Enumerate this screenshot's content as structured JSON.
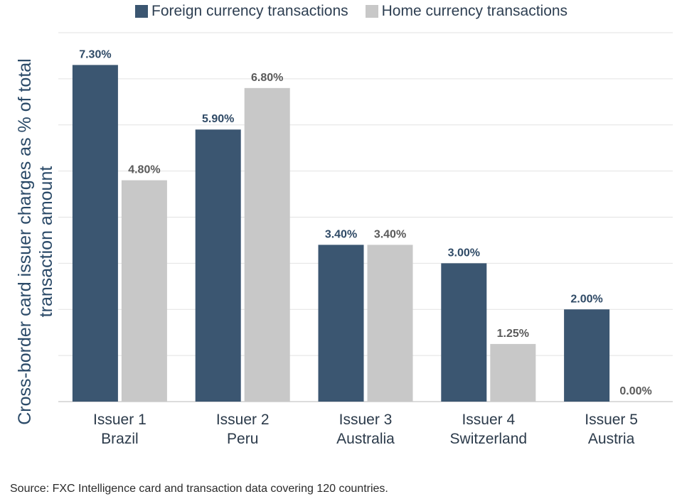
{
  "colors": {
    "foreign": "#3b5671",
    "home": "#c8c8c8",
    "grid": "#e2e2e2",
    "axis_text": "#2b3a4a",
    "foreign_label": "#2f4a66",
    "home_label": "#5a5a5a"
  },
  "legend": {
    "foreign": "Foreign currency transactions",
    "home": "Home currency transactions"
  },
  "source": "Source: FXC Intelligence card and transaction data covering 120 countries.",
  "chart_data": {
    "type": "bar",
    "categories": [
      [
        "Issuer 1",
        "Brazil"
      ],
      [
        "Issuer 2",
        "Peru"
      ],
      [
        "Issuer 3",
        "Australia"
      ],
      [
        "Issuer 4",
        "Switzerland"
      ],
      [
        "Issuer 5",
        "Austria"
      ]
    ],
    "series": [
      {
        "name": "Foreign currency transactions",
        "values": [
          7.3,
          5.9,
          3.4,
          3.0,
          2.0
        ],
        "labels": [
          "7.30%",
          "5.90%",
          "3.40%",
          "3.00%",
          "2.00%"
        ]
      },
      {
        "name": "Home currency transactions",
        "values": [
          4.8,
          6.8,
          3.4,
          1.25,
          0.0
        ],
        "labels": [
          "4.80%",
          "6.80%",
          "3.40%",
          "1.25%",
          "0.00%"
        ]
      }
    ],
    "ylabel": "Cross-border card issuer charges as % of total transaction amount",
    "ylim": [
      0,
      8
    ],
    "grid": true,
    "legend_position": "top"
  }
}
